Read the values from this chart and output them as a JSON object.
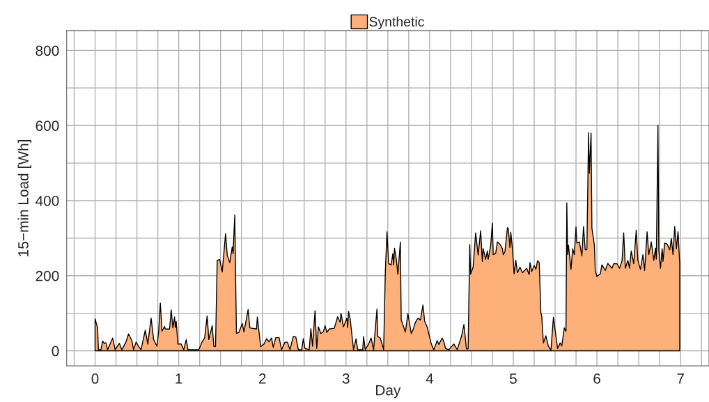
{
  "chart_data": {
    "type": "area",
    "xlabel": "Day",
    "ylabel": "15−min Load [Wh]",
    "xlim": [
      -0.34,
      7.34
    ],
    "ylim": [
      -40,
      853
    ],
    "xticks": [
      0,
      1,
      2,
      3,
      4,
      5,
      6,
      7
    ],
    "yticks": [
      0,
      200,
      400,
      600,
      800
    ],
    "grid": true,
    "legend": "top",
    "series": [
      {
        "name": "Synthetic",
        "color": "#fdb07a",
        "x": [
          0,
          0.03,
          0.04,
          0.07,
          0.09,
          0.11,
          0.13,
          0.15,
          0.21,
          0.24,
          0.29,
          0.32,
          0.37,
          0.4,
          0.44,
          0.46,
          0.49,
          0.52,
          0.55,
          0.6,
          0.63,
          0.67,
          0.7,
          0.74,
          0.76,
          0.78,
          0.8,
          0.83,
          0.84,
          0.89,
          0.91,
          0.93,
          0.95,
          0.96,
          0.97,
          0.99,
          1.03,
          1.06,
          1.09,
          1.11,
          1.24,
          1.28,
          1.31,
          1.34,
          1.36,
          1.4,
          1.42,
          1.44,
          1.46,
          1.49,
          1.52,
          1.56,
          1.58,
          1.61,
          1.64,
          1.65,
          1.67,
          1.69,
          1.72,
          1.76,
          1.78,
          1.83,
          1.85,
          1.93,
          1.94,
          1.98,
          2.02,
          2.05,
          2.08,
          2.11,
          2.13,
          2.16,
          2.2,
          2.23,
          2.27,
          2.3,
          2.33,
          2.37,
          2.4,
          2.43,
          2.47,
          2.49,
          2.51,
          2.56,
          2.58,
          2.6,
          2.63,
          2.65,
          2.67,
          2.7,
          2.73,
          2.75,
          2.77,
          2.8,
          2.86,
          2.9,
          2.93,
          2.94,
          2.97,
          3.01,
          3.02,
          3.03,
          3.05,
          3.09,
          3.12,
          3.14,
          3.2,
          3.21,
          3.23,
          3.27,
          3.3,
          3.33,
          3.37,
          3.38,
          3.41,
          3.45,
          3.47,
          3.49,
          3.51,
          3.54,
          3.56,
          3.57,
          3.58,
          3.6,
          3.62,
          3.65,
          3.66,
          3.71,
          3.74,
          3.78,
          3.8,
          3.83,
          3.86,
          3.89,
          3.92,
          3.94,
          3.97,
          4.02,
          4.05,
          4.09,
          4.11,
          4.15,
          4.17,
          4.19,
          4.23,
          4.29,
          4.33,
          4.38,
          4.41,
          4.44,
          4.46,
          4.48,
          4.49,
          4.52,
          4.55,
          4.58,
          4.61,
          4.63,
          4.64,
          4.67,
          4.69,
          4.7,
          4.73,
          4.75,
          4.76,
          4.79,
          4.81,
          4.84,
          4.87,
          4.88,
          4.9,
          4.93,
          4.94,
          4.96,
          4.97,
          4.99,
          5.01,
          5.03,
          5.05,
          5.08,
          5.11,
          5.16,
          5.19,
          5.2,
          5.22,
          5.25,
          5.27,
          5.29,
          5.31,
          5.33,
          5.34,
          5.36,
          5.39,
          5.42,
          5.45,
          5.48,
          5.5,
          5.53,
          5.56,
          5.58,
          5.61,
          5.63,
          5.64,
          5.65,
          5.66,
          5.69,
          5.71,
          5.73,
          5.75,
          5.76,
          5.79,
          5.82,
          5.84,
          5.86,
          5.88,
          5.9,
          5.91,
          5.93,
          5.94,
          5.97,
          5.98,
          6.0,
          6.04,
          6.06,
          6.1,
          6.13,
          6.18,
          6.2,
          6.24,
          6.27,
          6.3,
          6.32,
          6.34,
          6.37,
          6.39,
          6.41,
          6.44,
          6.47,
          6.49,
          6.52,
          6.55,
          6.57,
          6.6,
          6.62,
          6.65,
          6.68,
          6.7,
          6.71,
          6.73,
          6.74,
          6.76,
          6.78,
          6.79,
          6.81,
          6.84,
          6.87,
          6.89,
          6.91,
          6.93,
          6.95,
          6.97,
          6.99
        ],
        "values": [
          85,
          61,
          3,
          3,
          26,
          20,
          21,
          3,
          34,
          3,
          20,
          3,
          24,
          45,
          27,
          3,
          23,
          12,
          3,
          55,
          18,
          87,
          30,
          12,
          52,
          127,
          52,
          65,
          58,
          58,
          109,
          61,
          90,
          62,
          78,
          18,
          18,
          3,
          30,
          3,
          3,
          24,
          34,
          93,
          30,
          67,
          12,
          11,
          241,
          243,
          210,
          312,
          255,
          235,
          277,
          259,
          362,
          46,
          49,
          73,
          50,
          110,
          61,
          58,
          90,
          11,
          18,
          32,
          24,
          34,
          9,
          35,
          35,
          3,
          23,
          23,
          3,
          38,
          37,
          3,
          3,
          32,
          6,
          3,
          59,
          12,
          107,
          6,
          64,
          46,
          51,
          67,
          49,
          58,
          60,
          91,
          76,
          100,
          64,
          87,
          62,
          105,
          85,
          3,
          32,
          3,
          3,
          38,
          3,
          18,
          34,
          3,
          111,
          38,
          34,
          3,
          210,
          317,
          232,
          229,
          259,
          229,
          273,
          247,
          204,
          290,
          82,
          50,
          99,
          46,
          55,
          76,
          87,
          82,
          122,
          79,
          64,
          18,
          3,
          27,
          17,
          34,
          24,
          6,
          3,
          18,
          3,
          38,
          70,
          5,
          5,
          283,
          204,
          223,
          314,
          255,
          320,
          238,
          272,
          244,
          266,
          244,
          281,
          340,
          256,
          260,
          290,
          284,
          272,
          256,
          264,
          328,
          325,
          275,
          316,
          272,
          205,
          241,
          208,
          223,
          208,
          220,
          203,
          235,
          211,
          227,
          217,
          240,
          235,
          101,
          93,
          21,
          40,
          12,
          2,
          89,
          55,
          6,
          21,
          13,
          61,
          52,
          394,
          256,
          281,
          217,
          272,
          256,
          330,
          287,
          290,
          253,
          331,
          269,
          269,
          581,
          473,
          580,
          327,
          281,
          214,
          198,
          205,
          229,
          214,
          233,
          220,
          232,
          232,
          220,
          239,
          314,
          220,
          241,
          220,
          266,
          232,
          321,
          241,
          217,
          256,
          214,
          317,
          256,
          290,
          241,
          273,
          244,
          601,
          269,
          220,
          272,
          238,
          287,
          284,
          269,
          299,
          256,
          331,
          272,
          317,
          232
        ]
      }
    ]
  }
}
